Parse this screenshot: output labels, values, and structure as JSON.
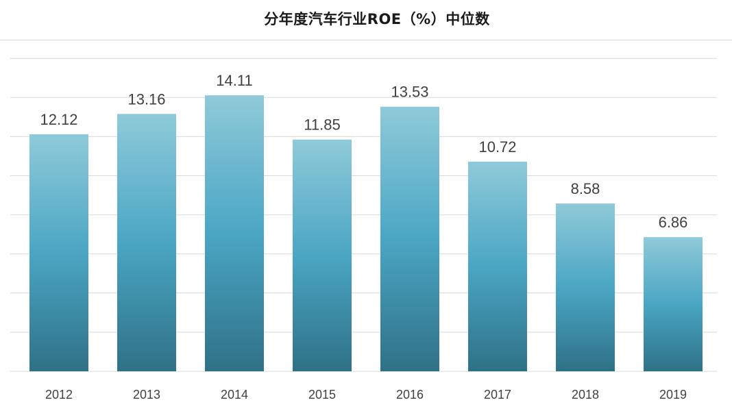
{
  "chart_data": {
    "type": "bar",
    "title": "分年度汽车行业ROE（%）中位数",
    "categories": [
      "2012",
      "2013",
      "2014",
      "2015",
      "2016",
      "2017",
      "2018",
      "2019"
    ],
    "values": [
      12.12,
      13.16,
      14.11,
      11.85,
      13.53,
      10.72,
      8.58,
      6.86
    ],
    "data_labels": [
      "12.12",
      "13.16",
      "14.11",
      "11.85",
      "13.53",
      "10.72",
      "8.58",
      "6.86"
    ],
    "xlabel": "",
    "ylabel": "",
    "ylim": [
      0,
      16
    ],
    "y_gridline_step": 2,
    "grid": true,
    "y_axis_labels_shown": false,
    "legend": "none",
    "colors": {
      "bar_top": "#8fcad9",
      "bar_mid": "#4aa6c4",
      "bar_bottom": "#2f7186",
      "gridline": "#d9d9d9",
      "text": "#404040"
    }
  }
}
